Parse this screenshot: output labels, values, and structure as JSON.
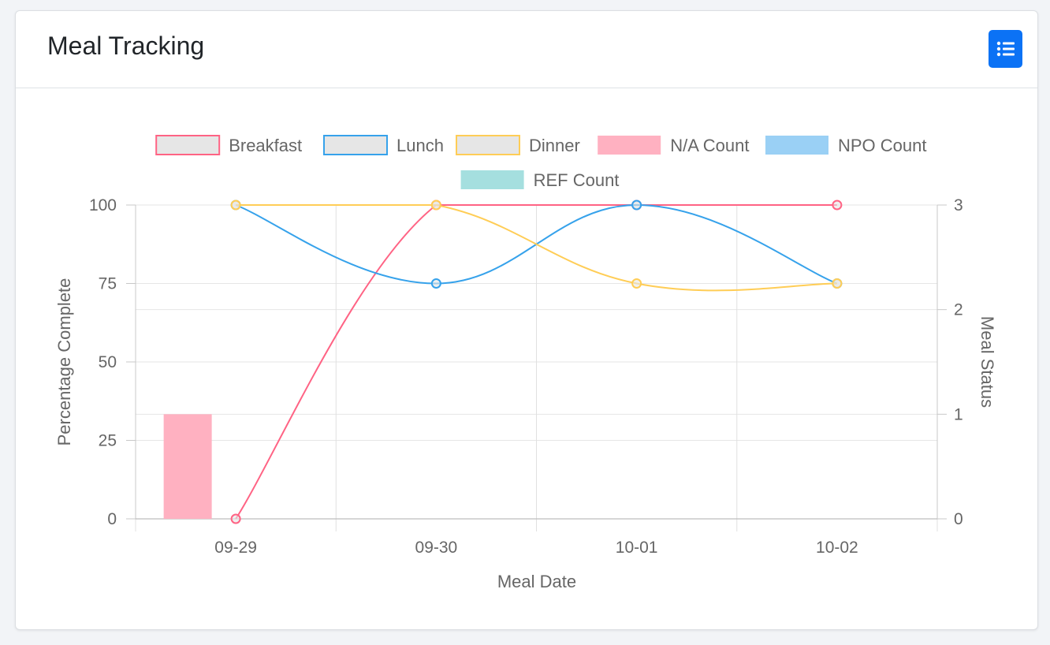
{
  "header": {
    "title": "Meal Tracking",
    "button_icon": "list-icon"
  },
  "colors": {
    "breakfast": "#ff6384",
    "lunch": "#36a2eb",
    "dinner": "#ffcd56",
    "na_count": "#ffb1c1",
    "npo_count": "#9ad0f5",
    "ref_count": "#a5dfdf",
    "accent": "#0b72f5"
  },
  "chart_data": {
    "type": "bar+line",
    "xlabel": "Meal Date",
    "ylabel_left": "Percentage Complete",
    "ylabel_right": "Meal Status",
    "categories": [
      "09-29",
      "09-30",
      "10-01",
      "10-02"
    ],
    "y_left_ticks": [
      "0",
      "25",
      "50",
      "75",
      "100"
    ],
    "y_right_ticks": [
      "0",
      "1",
      "2",
      "3"
    ],
    "ylim_left": [
      0,
      100
    ],
    "ylim_right": [
      0,
      3
    ],
    "grid": true,
    "legend_position": "top",
    "series": [
      {
        "name": "Breakfast",
        "type": "line",
        "axis": "left",
        "values": [
          0,
          100,
          100,
          100
        ]
      },
      {
        "name": "Lunch",
        "type": "line",
        "axis": "left",
        "values": [
          100,
          75,
          100,
          75
        ]
      },
      {
        "name": "Dinner",
        "type": "line",
        "axis": "left",
        "values": [
          100,
          100,
          75,
          75
        ]
      },
      {
        "name": "N/A Count",
        "type": "bar",
        "axis": "right",
        "values": [
          1,
          0,
          0,
          0
        ]
      },
      {
        "name": "NPO Count",
        "type": "bar",
        "axis": "right",
        "values": [
          0,
          0,
          0,
          0
        ]
      },
      {
        "name": "REF Count",
        "type": "bar",
        "axis": "right",
        "values": [
          0,
          0,
          0,
          0
        ]
      }
    ]
  }
}
